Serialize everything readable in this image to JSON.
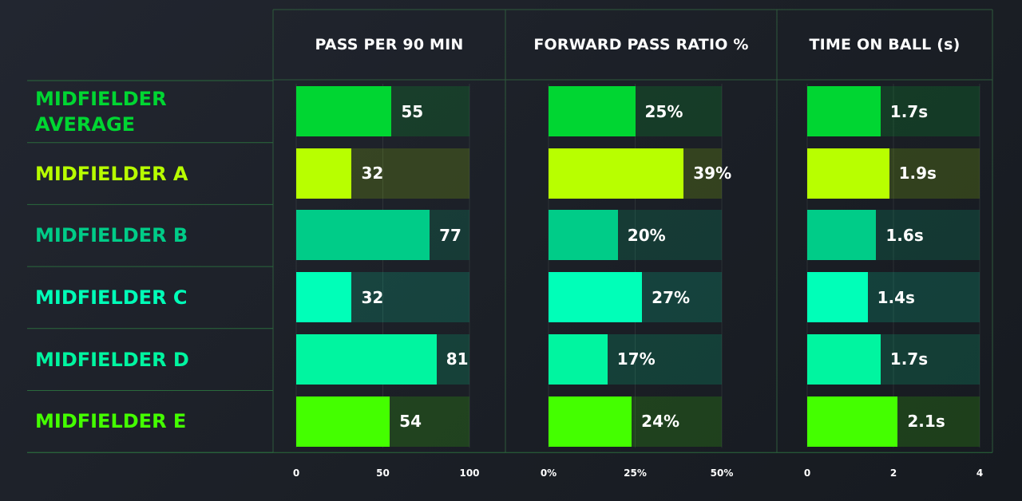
{
  "chart_data": {
    "type": "bar",
    "orientation": "horizontal",
    "categories": [
      "MIDFIELDER AVERAGE",
      "MIDFIELDER A",
      "MIDFIELDER B",
      "MIDFIELDER C",
      "MIDFIELDER D",
      "MIDFIELDER E"
    ],
    "category_colors": [
      "#00d632",
      "#b8ff00",
      "#00cc88",
      "#00ffb8",
      "#00f5a0",
      "#44ff00"
    ],
    "panels": [
      {
        "title": "PASS PER 90 MIN",
        "values": [
          55,
          32,
          77,
          32,
          81,
          54
        ],
        "value_labels": [
          "55",
          "32",
          "77",
          "32",
          "81",
          "54"
        ],
        "xlim": [
          0,
          100
        ],
        "ticks": [
          0,
          50,
          100
        ],
        "tick_labels": [
          "0",
          "50",
          "100"
        ]
      },
      {
        "title": "FORWARD PASS RATIO %",
        "values": [
          25,
          39,
          20,
          27,
          17,
          24
        ],
        "value_labels": [
          "25%",
          "39%",
          "20%",
          "27%",
          "17%",
          "24%"
        ],
        "xlim": [
          0,
          50
        ],
        "ticks": [
          0,
          25,
          50
        ],
        "tick_labels": [
          "0%",
          "25%",
          "50%"
        ]
      },
      {
        "title": "TIME ON BALL (s)",
        "values": [
          1.7,
          1.9,
          1.6,
          1.4,
          1.7,
          2.1
        ],
        "value_labels": [
          "1.7s",
          "1.9s",
          "1.6s",
          "1.4s",
          "1.7s",
          "2.1s"
        ],
        "xlim": [
          0,
          4
        ],
        "ticks": [
          0,
          2,
          4
        ],
        "tick_labels": [
          "0",
          "2",
          "4"
        ]
      }
    ]
  }
}
